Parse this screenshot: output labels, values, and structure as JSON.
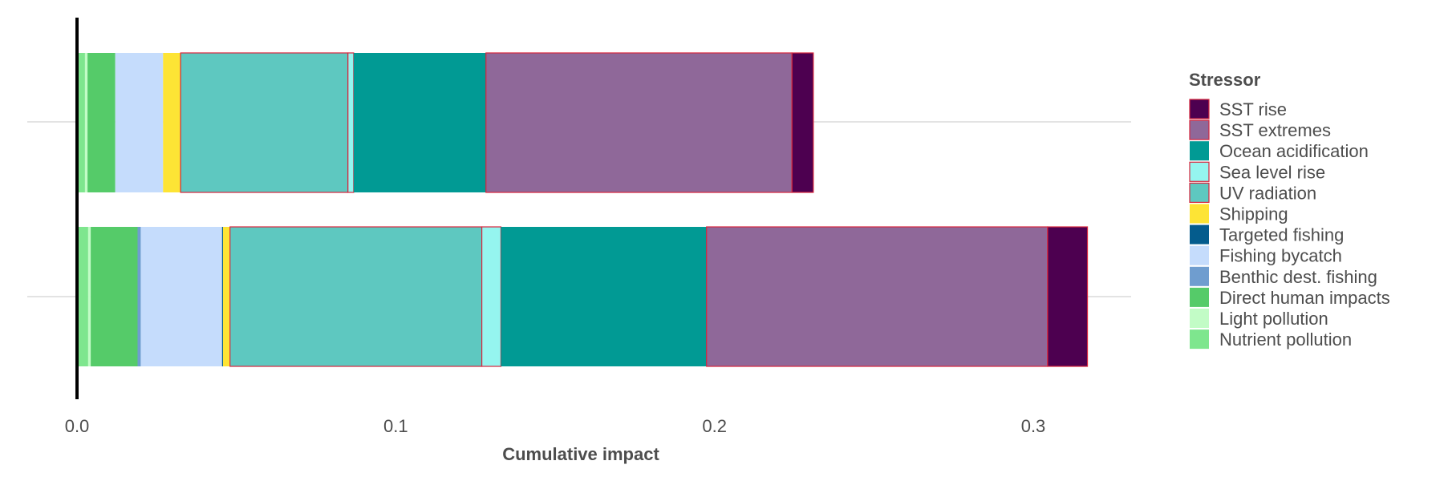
{
  "chart_data": {
    "type": "bar",
    "orientation": "horizontal",
    "stacked": true,
    "title": "",
    "xlabel": "Cumulative impact",
    "ylabel": "",
    "xlim": [
      0,
      0.33
    ],
    "x_ticks": [
      0,
      0.1,
      0.2,
      0.3
    ],
    "x_tick_labels": [
      "0.0",
      "0.1",
      "0.2",
      "0.3"
    ],
    "grid": "horizontal-major",
    "categories": [
      "",
      ""
    ],
    "legend": {
      "title": "Stressor",
      "position": "right"
    },
    "series": [
      {
        "name": "Nutrient pollution",
        "color": "#7ee68e",
        "outlined": false,
        "values": [
          0.0025,
          0.0035
        ]
      },
      {
        "name": "Light pollution",
        "color": "#c2fcc6",
        "outlined": false,
        "values": [
          0.0008,
          0.0008
        ]
      },
      {
        "name": "Direct human impacts",
        "color": "#55cb69",
        "outlined": false,
        "values": [
          0.0087,
          0.0147
        ]
      },
      {
        "name": "Benthic dest. fishing",
        "color": "#6f9dcf",
        "outlined": false,
        "values": [
          0.0,
          0.001
        ]
      },
      {
        "name": "Fishing bycatch",
        "color": "#c5dcfc",
        "outlined": false,
        "values": [
          0.015,
          0.0255
        ]
      },
      {
        "name": "Targeted fishing",
        "color": "#045c8d",
        "outlined": false,
        "values": [
          0.0,
          0.0003
        ]
      },
      {
        "name": "Shipping",
        "color": "#fde435",
        "outlined": false,
        "values": [
          0.0055,
          0.0022
        ]
      },
      {
        "name": "UV radiation",
        "color": "#5ec8c0",
        "outlined": true,
        "values": [
          0.0525,
          0.079
        ]
      },
      {
        "name": "Sea level rise",
        "color": "#95f5ef",
        "outlined": true,
        "values": [
          0.0018,
          0.006
        ]
      },
      {
        "name": "Ocean acidification",
        "color": "#019a94",
        "outlined": false,
        "values": [
          0.0415,
          0.0645
        ]
      },
      {
        "name": "SST extremes",
        "color": "#8f6899",
        "outlined": true,
        "values": [
          0.096,
          0.107
        ]
      },
      {
        "name": "SST rise",
        "color": "#4d0050",
        "outlined": true,
        "values": [
          0.0067,
          0.0125
        ]
      }
    ],
    "legend_order": [
      "SST rise",
      "SST extremes",
      "Ocean acidification",
      "Sea level rise",
      "UV radiation",
      "Shipping",
      "Targeted fishing",
      "Fishing bycatch",
      "Benthic dest. fishing",
      "Direct human impacts",
      "Light pollution",
      "Nutrient pollution"
    ],
    "outline_color": "#d7263d",
    "zero_line_color": "#000000"
  }
}
